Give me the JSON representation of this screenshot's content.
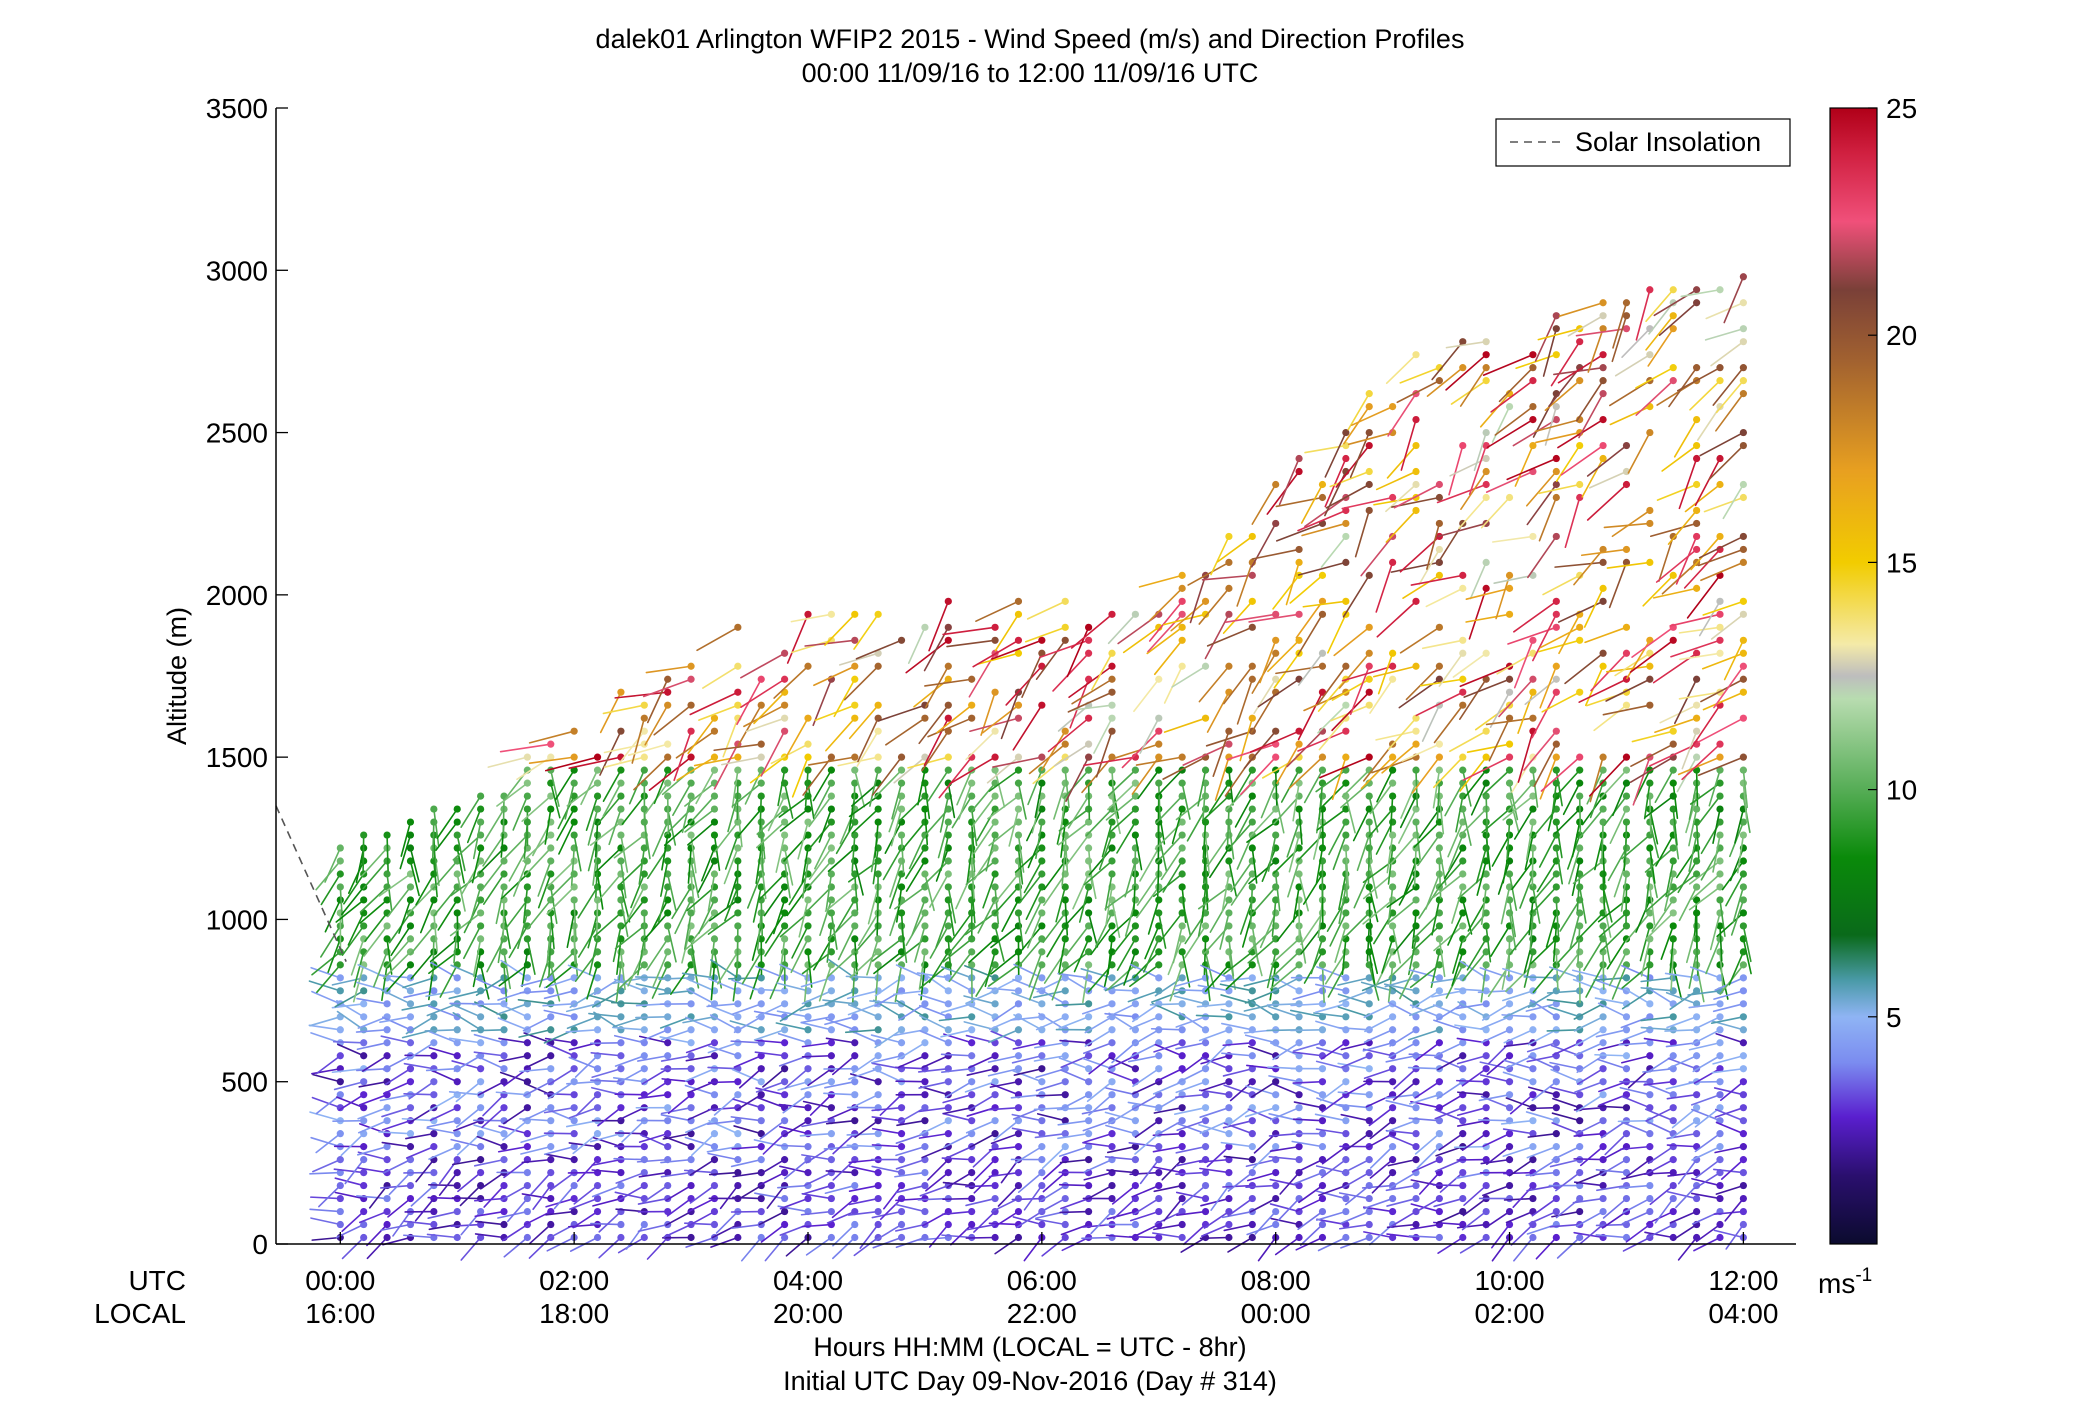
{
  "chart_data": {
    "type": "wind-barb-profile",
    "title_line1": "dalek01 Arlington WFIP2 2015 - Wind Speed (m/s) and Direction Profiles",
    "title_line2": "00:00 11/09/16 to 12:00 11/09/16  UTC",
    "ylabel": "Altitude (m)",
    "xlabel_line1": "Hours HH:MM  (LOCAL = UTC - 8hr)",
    "xlabel_line2": "Initial UTC Day 09-Nov-2016 (Day # 314)",
    "row_label_utc": "UTC",
    "row_label_local": "LOCAL",
    "ylim": [
      0,
      3500
    ],
    "yticks": [
      0,
      500,
      1000,
      1500,
      2000,
      2500,
      3000,
      3500
    ],
    "ytick_labels": [
      "0",
      "500",
      "1000",
      "1500",
      "2000",
      "2500",
      "3000",
      "3500"
    ],
    "xlim_hours": [
      -0.55,
      12.45
    ],
    "xticks_hours": [
      0,
      2,
      4,
      6,
      8,
      10,
      12
    ],
    "xtick_labels_utc": [
      "00:00",
      "02:00",
      "04:00",
      "06:00",
      "08:00",
      "10:00",
      "12:00"
    ],
    "xtick_labels_local": [
      "16:00",
      "18:00",
      "20:00",
      "22:00",
      "00:00",
      "02:00",
      "04:00"
    ],
    "legend": {
      "label": "Solar Insolation",
      "placement": "top-right"
    },
    "colorbar": {
      "range": [
        0,
        25
      ],
      "ticks": [
        5,
        10,
        15,
        20,
        25
      ],
      "tick_labels": [
        "5",
        "10",
        "15",
        "20",
        "25"
      ],
      "unit_base": "ms",
      "unit_exp": "-1",
      "stops": [
        {
          "v": 0,
          "c": "#0b0b2e"
        },
        {
          "v": 1.5,
          "c": "#2a0f6e"
        },
        {
          "v": 2.8,
          "c": "#5a1fcf"
        },
        {
          "v": 4.0,
          "c": "#7b8cf0"
        },
        {
          "v": 5.0,
          "c": "#8fb4f4"
        },
        {
          "v": 5.8,
          "c": "#4a9aa8"
        },
        {
          "v": 6.8,
          "c": "#0a6a1a"
        },
        {
          "v": 8.5,
          "c": "#0a8a0a"
        },
        {
          "v": 10,
          "c": "#56ad56"
        },
        {
          "v": 12,
          "c": "#b8dcb0"
        },
        {
          "v": 12.5,
          "c": "#bdbdbd"
        },
        {
          "v": 13.2,
          "c": "#f4eaa8"
        },
        {
          "v": 15,
          "c": "#f2cc00"
        },
        {
          "v": 17,
          "c": "#e8a020"
        },
        {
          "v": 19.5,
          "c": "#a06030"
        },
        {
          "v": 21,
          "c": "#7a4038"
        },
        {
          "v": 22.5,
          "c": "#f0507a"
        },
        {
          "v": 24,
          "c": "#d02040"
        },
        {
          "v": 25,
          "c": "#b00018"
        }
      ]
    },
    "insolation_line": {
      "hours": [
        -0.55,
        0.05
      ],
      "altitude_m": [
        1350,
        870
      ]
    },
    "profiles_summary": {
      "time_step_hours": 0.2,
      "altitude_step_m": 40,
      "layers": [
        {
          "name": "surface",
          "altitude_m": [
            0,
            280
          ],
          "speed_ms": [
            2,
            4
          ],
          "direction_deg": 250
        },
        {
          "name": "low",
          "altitude_m": [
            280,
            650
          ],
          "speed_ms": [
            2,
            5
          ],
          "direction_deg": 260
        },
        {
          "name": "jet",
          "altitude_m": [
            650,
            850
          ],
          "speed_ms": [
            4,
            6
          ],
          "direction_deg": 270
        },
        {
          "name": "mid",
          "altitude_m": [
            850,
            1500
          ],
          "speed_ms": [
            8,
            11
          ],
          "direction_deg": 200
        },
        {
          "name": "upper",
          "altitude_m": [
            1500,
            3200
          ],
          "speed_ms": [
            12,
            25
          ],
          "direction_deg": 230
        }
      ]
    }
  }
}
